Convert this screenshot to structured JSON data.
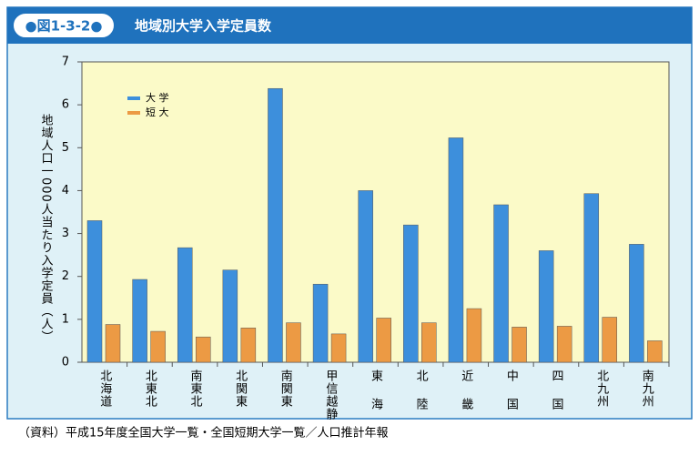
{
  "chart_data": {
    "type": "bar",
    "figure_label": "●図1-3-2●",
    "title": "地域別大学入学定員数",
    "y_label": "地域人口一000人当たり入学定員（人）",
    "source": "（資料）平成15年度全国大学一覧・全国短期大学一覧／人口推計年報",
    "categories": [
      "北海道",
      "北東北",
      "南東北",
      "北関東",
      "南関東",
      "甲信越静",
      "東海",
      "北陸",
      "近畿",
      "中国",
      "四国",
      "北九州",
      "南九州"
    ],
    "series": [
      {
        "name": "大 学",
        "color": "#3d8fdc",
        "values": [
          3.3,
          1.93,
          2.67,
          2.15,
          6.38,
          1.82,
          4.0,
          3.2,
          5.23,
          3.67,
          2.6,
          3.93,
          2.75
        ]
      },
      {
        "name": "短 大",
        "color": "#ec9a44",
        "values": [
          0.88,
          0.72,
          0.59,
          0.8,
          0.92,
          0.66,
          1.03,
          0.92,
          1.25,
          0.82,
          0.84,
          1.05,
          0.5
        ]
      }
    ],
    "ylim": [
      0,
      7
    ],
    "yticks": [
      0,
      1,
      2,
      3,
      4,
      5,
      6,
      7
    ],
    "legend": "upper-left"
  }
}
